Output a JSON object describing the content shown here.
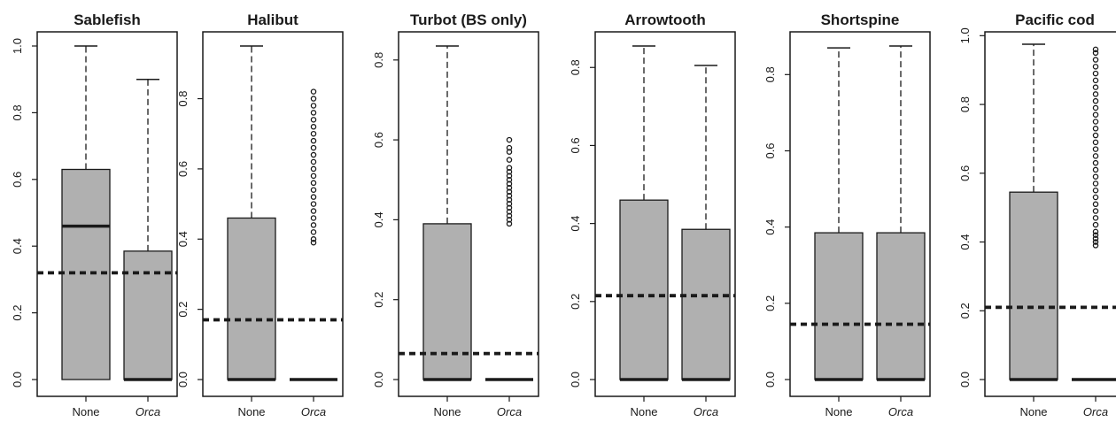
{
  "colors": {
    "box_fill": "#b0b0b0",
    "stroke": "#1a1a1a",
    "background": "#ffffff"
  },
  "chart_data": [
    {
      "type": "boxplot",
      "title": "Sablefish",
      "categories": [
        "None",
        "Orca"
      ],
      "ylim": [
        0,
        1.0
      ],
      "yticks": [
        "0.0",
        "0.2",
        "0.4",
        "0.6",
        "0.8",
        "1.0"
      ],
      "reference_line": 0.32,
      "boxes": [
        {
          "category": "None",
          "min": 0.0,
          "q1": 0.0,
          "median": 0.46,
          "q3": 0.63,
          "max": 1.0,
          "outliers": []
        },
        {
          "category": "Orca",
          "min": 0.0,
          "q1": 0.0,
          "median": 0.0,
          "q3": 0.385,
          "max": 0.9,
          "outliers": []
        }
      ]
    },
    {
      "type": "boxplot",
      "title": "Halibut",
      "categories": [
        "None",
        "Orca"
      ],
      "ylim": [
        0,
        0.95
      ],
      "yticks": [
        "0.0",
        "0.2",
        "0.4",
        "0.6",
        "0.8"
      ],
      "reference_line": 0.17,
      "boxes": [
        {
          "category": "None",
          "min": 0.0,
          "q1": 0.0,
          "median": 0.0,
          "q3": 0.46,
          "max": 0.95,
          "outliers": []
        },
        {
          "category": "Orca",
          "min": 0.0,
          "q1": 0.0,
          "median": 0.0,
          "q3": 0.0,
          "max": 0.0,
          "outliers": [
            0.39,
            0.4,
            0.42,
            0.44,
            0.46,
            0.48,
            0.5,
            0.52,
            0.54,
            0.56,
            0.58,
            0.6,
            0.62,
            0.64,
            0.66,
            0.68,
            0.7,
            0.72,
            0.74,
            0.76,
            0.78,
            0.8,
            0.82
          ]
        }
      ]
    },
    {
      "type": "boxplot",
      "title": "Turbot (BS only)",
      "categories": [
        "None",
        "Orca"
      ],
      "ylim": [
        0,
        0.835
      ],
      "yticks": [
        "0.0",
        "0.2",
        "0.4",
        "0.6",
        "0.8"
      ],
      "reference_line": 0.065,
      "boxes": [
        {
          "category": "None",
          "min": 0.0,
          "q1": 0.0,
          "median": 0.0,
          "q3": 0.39,
          "max": 0.835,
          "outliers": []
        },
        {
          "category": "Orca",
          "min": 0.0,
          "q1": 0.0,
          "median": 0.0,
          "q3": 0.0,
          "max": 0.0,
          "outliers": [
            0.39,
            0.4,
            0.41,
            0.42,
            0.43,
            0.44,
            0.45,
            0.46,
            0.47,
            0.48,
            0.49,
            0.5,
            0.51,
            0.52,
            0.53,
            0.55,
            0.57,
            0.58,
            0.6
          ]
        }
      ]
    },
    {
      "type": "boxplot",
      "title": "Arrowtooth",
      "categories": [
        "None",
        "Orca"
      ],
      "ylim": [
        0,
        0.855
      ],
      "yticks": [
        "0.0",
        "0.2",
        "0.4",
        "0.6",
        "0.8"
      ],
      "reference_line": 0.215,
      "boxes": [
        {
          "category": "None",
          "min": 0.0,
          "q1": 0.0,
          "median": 0.0,
          "q3": 0.46,
          "max": 0.855,
          "outliers": []
        },
        {
          "category": "Orca",
          "min": 0.0,
          "q1": 0.0,
          "median": 0.0,
          "q3": 0.385,
          "max": 0.805,
          "outliers": []
        }
      ]
    },
    {
      "type": "boxplot",
      "title": "Shortspine",
      "categories": [
        "None",
        "Orca"
      ],
      "ylim": [
        0,
        0.875
      ],
      "yticks": [
        "0.0",
        "0.2",
        "0.4",
        "0.6",
        "0.8"
      ],
      "reference_line": 0.145,
      "boxes": [
        {
          "category": "None",
          "min": 0.0,
          "q1": 0.0,
          "median": 0.0,
          "q3": 0.385,
          "max": 0.87,
          "outliers": []
        },
        {
          "category": "Orca",
          "min": 0.0,
          "q1": 0.0,
          "median": 0.0,
          "q3": 0.385,
          "max": 0.875,
          "outliers": []
        }
      ]
    },
    {
      "type": "boxplot",
      "title": "Pacific cod",
      "categories": [
        "None",
        "Orca"
      ],
      "ylim": [
        0,
        0.97
      ],
      "yticks": [
        "0.0",
        "0.2",
        "0.4",
        "0.6",
        "0.8",
        "1.0"
      ],
      "reference_line": 0.21,
      "boxes": [
        {
          "category": "None",
          "min": 0.0,
          "q1": 0.0,
          "median": 0.0,
          "q3": 0.545,
          "max": 0.975,
          "outliers": []
        },
        {
          "category": "Orca",
          "min": 0.0,
          "q1": 0.0,
          "median": 0.0,
          "q3": 0.0,
          "max": 0.0,
          "outliers": [
            0.39,
            0.4,
            0.41,
            0.42,
            0.43,
            0.45,
            0.47,
            0.49,
            0.51,
            0.53,
            0.55,
            0.57,
            0.59,
            0.61,
            0.63,
            0.65,
            0.67,
            0.69,
            0.71,
            0.73,
            0.75,
            0.77,
            0.79,
            0.81,
            0.83,
            0.85,
            0.87,
            0.89,
            0.91,
            0.93,
            0.95,
            0.96
          ]
        }
      ]
    }
  ]
}
